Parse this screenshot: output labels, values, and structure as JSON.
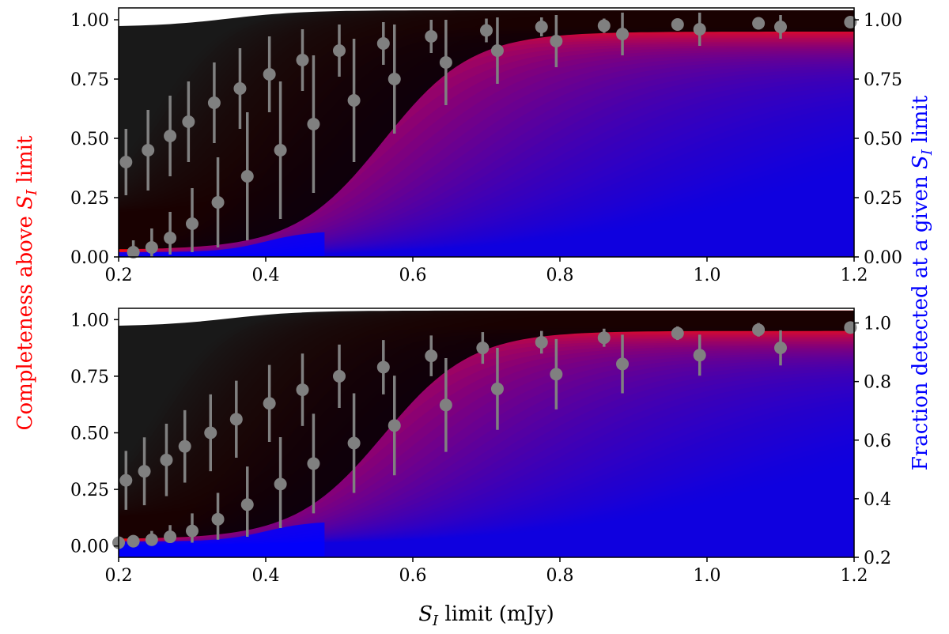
{
  "chart_data": [
    {
      "type": "scatter",
      "panel": "top",
      "xlabel_prefix": "S",
      "xlabel_sub": "I",
      "xlabel_suffix": " limit (mJy)",
      "ylabel_left_prefix": "Completeness above ",
      "ylabel_left_sym": "S",
      "ylabel_left_sub": "I",
      "ylabel_left_suffix": " limit",
      "ylabel_right_prefix": "Fraction detected at a given ",
      "ylabel_right_sym": "S",
      "ylabel_right_sub": "I",
      "ylabel_right_suffix": " limit",
      "xlim": [
        0.2,
        1.2
      ],
      "ylim_left": [
        0.0,
        1.05
      ],
      "ylim_right": [
        0.0,
        1.05
      ],
      "x_ticks": [
        "0.2",
        "0.4",
        "0.6",
        "0.8",
        "1.0",
        "1.2"
      ],
      "y_ticks_left": [
        "0.00",
        "0.25",
        "0.50",
        "0.75",
        "1.00"
      ],
      "y_ticks_right": [
        "0.00",
        "0.25",
        "0.50",
        "0.75",
        "1.00"
      ],
      "colors": {
        "completeness": "#ff0000",
        "fraction": "#0000ff",
        "points": "#808080",
        "overlap": "#000000"
      },
      "completeness_points": {
        "x": [
          0.21,
          0.24,
          0.27,
          0.295,
          0.33,
          0.365,
          0.405,
          0.45,
          0.5,
          0.56,
          0.625,
          0.7,
          0.775,
          0.86,
          0.96,
          1.07,
          1.195
        ],
        "y": [
          0.4,
          0.45,
          0.51,
          0.57,
          0.65,
          0.71,
          0.77,
          0.83,
          0.87,
          0.9,
          0.93,
          0.955,
          0.97,
          0.975,
          0.98,
          0.985,
          0.99
        ],
        "err_lo": [
          0.14,
          0.17,
          0.17,
          0.17,
          0.17,
          0.17,
          0.16,
          0.13,
          0.11,
          0.09,
          0.07,
          0.05,
          0.04,
          0.03,
          0.02,
          0.02,
          0.01
        ],
        "err_hi": [
          0.14,
          0.17,
          0.17,
          0.17,
          0.17,
          0.17,
          0.16,
          0.13,
          0.11,
          0.09,
          0.07,
          0.05,
          0.04,
          0.03,
          0.02,
          0.02,
          0.01
        ]
      },
      "fraction_points": {
        "x": [
          0.22,
          0.245,
          0.27,
          0.3,
          0.335,
          0.375,
          0.42,
          0.465,
          0.52,
          0.575,
          0.645,
          0.715,
          0.795,
          0.885,
          0.99,
          1.1
        ],
        "y": [
          0.02,
          0.04,
          0.08,
          0.14,
          0.23,
          0.34,
          0.45,
          0.56,
          0.66,
          0.75,
          0.82,
          0.87,
          0.91,
          0.94,
          0.96,
          0.97
        ],
        "err_lo": [
          0.02,
          0.04,
          0.07,
          0.12,
          0.19,
          0.27,
          0.29,
          0.29,
          0.26,
          0.23,
          0.18,
          0.14,
          0.11,
          0.09,
          0.07,
          0.05
        ],
        "err_hi": [
          0.05,
          0.08,
          0.11,
          0.15,
          0.19,
          0.27,
          0.29,
          0.29,
          0.26,
          0.23,
          0.18,
          0.14,
          0.11,
          0.09,
          0.07,
          0.05
        ]
      }
    },
    {
      "type": "scatter",
      "panel": "bottom",
      "xlim": [
        0.2,
        1.2
      ],
      "ylim_left": [
        -0.05,
        1.05
      ],
      "ylim_right": [
        0.2,
        1.05
      ],
      "x_ticks": [
        "0.2",
        "0.4",
        "0.6",
        "0.8",
        "1.0",
        "1.2"
      ],
      "y_ticks_left": [
        "0.00",
        "0.25",
        "0.50",
        "0.75",
        "1.00"
      ],
      "y_ticks_right": [
        "0.2",
        "0.4",
        "0.6",
        "0.8",
        "1.0"
      ],
      "colors": {
        "completeness": "#ff0000",
        "fraction": "#0000ff",
        "points": "#808080",
        "overlap": "#000000"
      },
      "completeness_points": {
        "x": [
          0.21,
          0.235,
          0.265,
          0.29,
          0.325,
          0.36,
          0.405,
          0.45,
          0.5,
          0.56,
          0.625,
          0.695,
          0.775,
          0.86,
          0.96,
          1.07,
          1.195
        ],
        "y": [
          0.29,
          0.33,
          0.38,
          0.44,
          0.5,
          0.56,
          0.63,
          0.69,
          0.75,
          0.79,
          0.84,
          0.875,
          0.9,
          0.92,
          0.94,
          0.955,
          0.965
        ],
        "err_lo": [
          0.13,
          0.15,
          0.16,
          0.16,
          0.17,
          0.17,
          0.17,
          0.16,
          0.14,
          0.12,
          0.09,
          0.07,
          0.05,
          0.04,
          0.03,
          0.03,
          0.02
        ],
        "err_hi": [
          0.13,
          0.15,
          0.16,
          0.16,
          0.17,
          0.17,
          0.17,
          0.16,
          0.14,
          0.12,
          0.09,
          0.07,
          0.05,
          0.04,
          0.03,
          0.03,
          0.02
        ]
      },
      "fraction_points": {
        "x": [
          0.2,
          0.22,
          0.245,
          0.27,
          0.3,
          0.335,
          0.375,
          0.42,
          0.465,
          0.52,
          0.575,
          0.645,
          0.715,
          0.795,
          0.885,
          0.99,
          1.1
        ],
        "y": [
          0.25,
          0.255,
          0.26,
          0.27,
          0.29,
          0.33,
          0.38,
          0.45,
          0.52,
          0.59,
          0.65,
          0.72,
          0.775,
          0.825,
          0.86,
          0.89,
          0.915
        ],
        "err_lo": [
          0.0,
          0.01,
          0.01,
          0.02,
          0.04,
          0.07,
          0.11,
          0.15,
          0.17,
          0.17,
          0.17,
          0.16,
          0.14,
          0.12,
          0.1,
          0.07,
          0.06
        ],
        "err_hi": [
          0.0,
          0.02,
          0.03,
          0.04,
          0.06,
          0.09,
          0.13,
          0.16,
          0.17,
          0.17,
          0.17,
          0.16,
          0.14,
          0.12,
          0.1,
          0.07,
          0.06
        ]
      }
    }
  ]
}
